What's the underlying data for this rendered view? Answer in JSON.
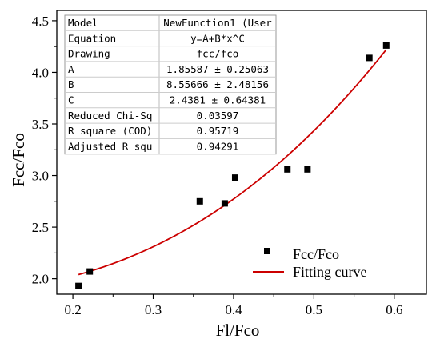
{
  "chart_data": {
    "type": "scatter",
    "xlabel": "Fl/Fco",
    "ylabel": "Fcc/Fco",
    "xlim": [
      0.18,
      0.64
    ],
    "ylim": [
      1.85,
      4.6
    ],
    "xticks": [
      "0.2",
      "0.3",
      "0.4",
      "0.5",
      "0.6"
    ],
    "yticks": [
      "2.0",
      "2.5",
      "3.0",
      "3.5",
      "4.0",
      "4.5"
    ],
    "grid": false,
    "legend_position": "bottom-right",
    "series": [
      {
        "name": "Fcc/Fco",
        "kind": "scatter",
        "color": "#000000",
        "x": [
          0.207,
          0.221,
          0.358,
          0.389,
          0.402,
          0.467,
          0.492,
          0.569,
          0.59
        ],
        "y": [
          1.93,
          2.07,
          2.75,
          2.73,
          2.98,
          3.06,
          3.06,
          4.14,
          4.26
        ]
      },
      {
        "name": "Fitting curve",
        "kind": "line",
        "color": "#cc0000",
        "model": "y=A+B*x^C",
        "params": {
          "A": 1.85587,
          "B": 8.55666,
          "C": 2.4381
        },
        "x_range": [
          0.207,
          0.59
        ]
      }
    ],
    "fit_table": {
      "rows": [
        {
          "label": "Model",
          "value": "NewFunction1 (User"
        },
        {
          "label": "Equation",
          "value": "y=A+B*x^C"
        },
        {
          "label": "Drawing",
          "value": "fcc/fco"
        },
        {
          "label": "A",
          "value": "1.85587 ± 0.25063"
        },
        {
          "label": "B",
          "value": "8.55666 ± 2.48156"
        },
        {
          "label": "C",
          "value": "2.4381 ± 0.64381"
        },
        {
          "label": "Reduced Chi-Sq",
          "value": "0.03597"
        },
        {
          "label": "R square (COD)",
          "value": "0.95719"
        },
        {
          "label": "Adjusted R squ",
          "value": "0.94291"
        }
      ]
    }
  }
}
